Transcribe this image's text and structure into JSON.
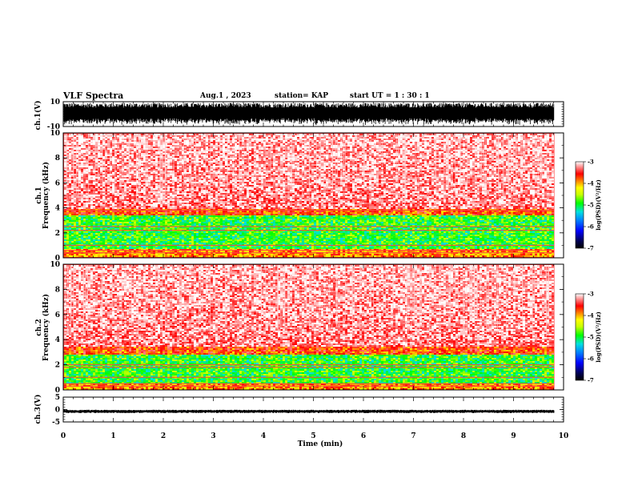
{
  "header": {
    "title": "VLF Spectra",
    "date": "Aug.1  , 2023",
    "station": "station= KAP",
    "start": "start  UT =   1 : 30 : 1"
  },
  "chart_data": [
    {
      "type": "line",
      "name": "ch1-waveform",
      "ylabel": "ch.1(V)",
      "ylim": [
        -10,
        10
      ],
      "yticks": [
        "10",
        "-10"
      ],
      "x_range_min": [
        0,
        9.8
      ],
      "description": "dense black waveform, amplitude roughly -9 to 9 V"
    },
    {
      "type": "heatmap",
      "name": "ch1-spectrogram",
      "ylabel": "ch.1\nFrequency (kHz)",
      "ylim": [
        0,
        10
      ],
      "yticks": [
        "10",
        "8",
        "6",
        "4",
        "2",
        "0"
      ],
      "colorbar": {
        "label": "log(PSD)(V²/Hz)",
        "ticks": [
          "-3",
          "-4",
          "-5",
          "-6",
          "-7"
        ],
        "range": [
          -7,
          -3
        ]
      },
      "bands": [
        {
          "from_khz": 4.0,
          "to_khz": 10.0,
          "level": "red-white (≈ -3 to -3.8)"
        },
        {
          "from_khz": 3.5,
          "to_khz": 4.0,
          "level": "red (≈ -4)"
        },
        {
          "from_khz": 0.8,
          "to_khz": 3.5,
          "level": "green-yellow (≈ -4.5 to -5.5)"
        },
        {
          "from_khz": 0.0,
          "to_khz": 0.8,
          "level": "red-orange"
        }
      ]
    },
    {
      "type": "heatmap",
      "name": "ch2-spectrogram",
      "ylabel": "ch.2\nFrequency (kHz)",
      "ylim": [
        0,
        10
      ],
      "yticks": [
        "10",
        "8",
        "6",
        "4",
        "2",
        "0"
      ],
      "colorbar": {
        "label": "log(PSD)(V²/Hz)",
        "ticks": [
          "-3",
          "-4",
          "-5",
          "-6",
          "-7"
        ],
        "range": [
          -7,
          -3
        ]
      },
      "bands": [
        {
          "from_khz": 3.5,
          "to_khz": 10.0,
          "level": "red-white (≈ -3 to -3.8)"
        },
        {
          "from_khz": 2.8,
          "to_khz": 3.5,
          "level": "red (≈ -4)"
        },
        {
          "from_khz": 0.6,
          "to_khz": 2.8,
          "level": "green-yellow (≈ -4.5 to -5.5)"
        },
        {
          "from_khz": 0.0,
          "to_khz": 0.6,
          "level": "red-orange"
        }
      ]
    },
    {
      "type": "line",
      "name": "ch3-waveform",
      "ylabel": "ch.3(V)",
      "ylim": [
        -5,
        5
      ],
      "yticks": [
        "5",
        "0",
        "-5"
      ],
      "x_range_min": [
        0,
        9.8
      ],
      "description": "near-flat black band around -1 V"
    }
  ],
  "x_axis": {
    "label": "Time  (min)",
    "ticks": [
      "0",
      "1",
      "2",
      "3",
      "4",
      "5",
      "6",
      "7",
      "8",
      "9",
      "10"
    ],
    "range": [
      0,
      10
    ]
  },
  "colors": {
    "trace": "#000000",
    "axes": "#000000",
    "high": "#ff0000",
    "mid": "#00ff00",
    "low": "#0000ff"
  }
}
